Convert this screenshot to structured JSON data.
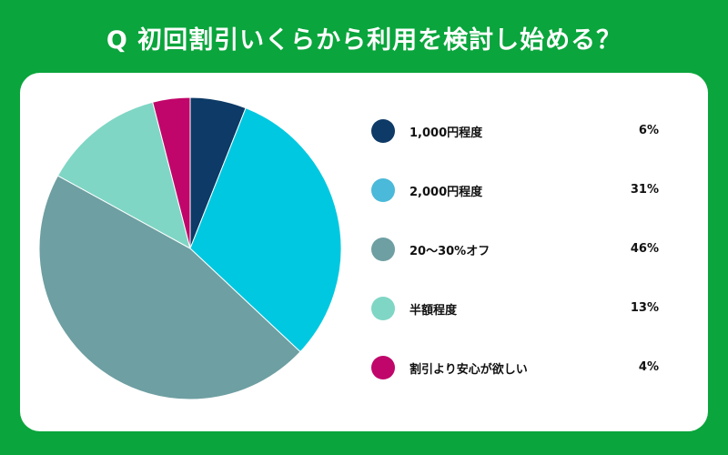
{
  "title": "Q 初回割引いくらから利用を検討し始める？",
  "chart_data": {
    "type": "pie",
    "title": "Q 初回割引いくらから利用を検討し始める？",
    "categories": [
      "1,000円程度",
      "2,000円程度",
      "20〜30%オフ",
      "半額程度",
      "割引より安心が欲しい"
    ],
    "values": [
      6,
      31,
      46,
      13,
      4
    ],
    "value_labels": [
      "6%",
      "31%",
      "46%",
      "13%",
      "4%"
    ],
    "colors": [
      "#0d3a66",
      "#00c8e0",
      "#6e9fa2",
      "#7fd6c5",
      "#c0066a"
    ],
    "legend_colors": [
      "#0d3a66",
      "#4ab9da",
      "#6e9fa2",
      "#7fd6c5",
      "#c0066a"
    ],
    "legend_position": "right"
  }
}
